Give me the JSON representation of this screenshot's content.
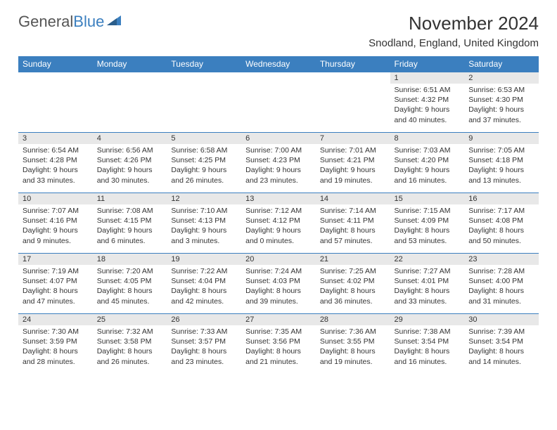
{
  "brand": {
    "part1": "General",
    "part2": "Blue"
  },
  "title": "November 2024",
  "location": "Snodland, England, United Kingdom",
  "header_bg": "#3b7fbf",
  "weekdays": [
    "Sunday",
    "Monday",
    "Tuesday",
    "Wednesday",
    "Thursday",
    "Friday",
    "Saturday"
  ],
  "weeks": [
    [
      {
        "n": "",
        "sr": "",
        "ss": "",
        "dl": ""
      },
      {
        "n": "",
        "sr": "",
        "ss": "",
        "dl": ""
      },
      {
        "n": "",
        "sr": "",
        "ss": "",
        "dl": ""
      },
      {
        "n": "",
        "sr": "",
        "ss": "",
        "dl": ""
      },
      {
        "n": "",
        "sr": "",
        "ss": "",
        "dl": ""
      },
      {
        "n": "1",
        "sr": "Sunrise: 6:51 AM",
        "ss": "Sunset: 4:32 PM",
        "dl": "Daylight: 9 hours and 40 minutes."
      },
      {
        "n": "2",
        "sr": "Sunrise: 6:53 AM",
        "ss": "Sunset: 4:30 PM",
        "dl": "Daylight: 9 hours and 37 minutes."
      }
    ],
    [
      {
        "n": "3",
        "sr": "Sunrise: 6:54 AM",
        "ss": "Sunset: 4:28 PM",
        "dl": "Daylight: 9 hours and 33 minutes."
      },
      {
        "n": "4",
        "sr": "Sunrise: 6:56 AM",
        "ss": "Sunset: 4:26 PM",
        "dl": "Daylight: 9 hours and 30 minutes."
      },
      {
        "n": "5",
        "sr": "Sunrise: 6:58 AM",
        "ss": "Sunset: 4:25 PM",
        "dl": "Daylight: 9 hours and 26 minutes."
      },
      {
        "n": "6",
        "sr": "Sunrise: 7:00 AM",
        "ss": "Sunset: 4:23 PM",
        "dl": "Daylight: 9 hours and 23 minutes."
      },
      {
        "n": "7",
        "sr": "Sunrise: 7:01 AM",
        "ss": "Sunset: 4:21 PM",
        "dl": "Daylight: 9 hours and 19 minutes."
      },
      {
        "n": "8",
        "sr": "Sunrise: 7:03 AM",
        "ss": "Sunset: 4:20 PM",
        "dl": "Daylight: 9 hours and 16 minutes."
      },
      {
        "n": "9",
        "sr": "Sunrise: 7:05 AM",
        "ss": "Sunset: 4:18 PM",
        "dl": "Daylight: 9 hours and 13 minutes."
      }
    ],
    [
      {
        "n": "10",
        "sr": "Sunrise: 7:07 AM",
        "ss": "Sunset: 4:16 PM",
        "dl": "Daylight: 9 hours and 9 minutes."
      },
      {
        "n": "11",
        "sr": "Sunrise: 7:08 AM",
        "ss": "Sunset: 4:15 PM",
        "dl": "Daylight: 9 hours and 6 minutes."
      },
      {
        "n": "12",
        "sr": "Sunrise: 7:10 AM",
        "ss": "Sunset: 4:13 PM",
        "dl": "Daylight: 9 hours and 3 minutes."
      },
      {
        "n": "13",
        "sr": "Sunrise: 7:12 AM",
        "ss": "Sunset: 4:12 PM",
        "dl": "Daylight: 9 hours and 0 minutes."
      },
      {
        "n": "14",
        "sr": "Sunrise: 7:14 AM",
        "ss": "Sunset: 4:11 PM",
        "dl": "Daylight: 8 hours and 57 minutes."
      },
      {
        "n": "15",
        "sr": "Sunrise: 7:15 AM",
        "ss": "Sunset: 4:09 PM",
        "dl": "Daylight: 8 hours and 53 minutes."
      },
      {
        "n": "16",
        "sr": "Sunrise: 7:17 AM",
        "ss": "Sunset: 4:08 PM",
        "dl": "Daylight: 8 hours and 50 minutes."
      }
    ],
    [
      {
        "n": "17",
        "sr": "Sunrise: 7:19 AM",
        "ss": "Sunset: 4:07 PM",
        "dl": "Daylight: 8 hours and 47 minutes."
      },
      {
        "n": "18",
        "sr": "Sunrise: 7:20 AM",
        "ss": "Sunset: 4:05 PM",
        "dl": "Daylight: 8 hours and 45 minutes."
      },
      {
        "n": "19",
        "sr": "Sunrise: 7:22 AM",
        "ss": "Sunset: 4:04 PM",
        "dl": "Daylight: 8 hours and 42 minutes."
      },
      {
        "n": "20",
        "sr": "Sunrise: 7:24 AM",
        "ss": "Sunset: 4:03 PM",
        "dl": "Daylight: 8 hours and 39 minutes."
      },
      {
        "n": "21",
        "sr": "Sunrise: 7:25 AM",
        "ss": "Sunset: 4:02 PM",
        "dl": "Daylight: 8 hours and 36 minutes."
      },
      {
        "n": "22",
        "sr": "Sunrise: 7:27 AM",
        "ss": "Sunset: 4:01 PM",
        "dl": "Daylight: 8 hours and 33 minutes."
      },
      {
        "n": "23",
        "sr": "Sunrise: 7:28 AM",
        "ss": "Sunset: 4:00 PM",
        "dl": "Daylight: 8 hours and 31 minutes."
      }
    ],
    [
      {
        "n": "24",
        "sr": "Sunrise: 7:30 AM",
        "ss": "Sunset: 3:59 PM",
        "dl": "Daylight: 8 hours and 28 minutes."
      },
      {
        "n": "25",
        "sr": "Sunrise: 7:32 AM",
        "ss": "Sunset: 3:58 PM",
        "dl": "Daylight: 8 hours and 26 minutes."
      },
      {
        "n": "26",
        "sr": "Sunrise: 7:33 AM",
        "ss": "Sunset: 3:57 PM",
        "dl": "Daylight: 8 hours and 23 minutes."
      },
      {
        "n": "27",
        "sr": "Sunrise: 7:35 AM",
        "ss": "Sunset: 3:56 PM",
        "dl": "Daylight: 8 hours and 21 minutes."
      },
      {
        "n": "28",
        "sr": "Sunrise: 7:36 AM",
        "ss": "Sunset: 3:55 PM",
        "dl": "Daylight: 8 hours and 19 minutes."
      },
      {
        "n": "29",
        "sr": "Sunrise: 7:38 AM",
        "ss": "Sunset: 3:54 PM",
        "dl": "Daylight: 8 hours and 16 minutes."
      },
      {
        "n": "30",
        "sr": "Sunrise: 7:39 AM",
        "ss": "Sunset: 3:54 PM",
        "dl": "Daylight: 8 hours and 14 minutes."
      }
    ]
  ]
}
